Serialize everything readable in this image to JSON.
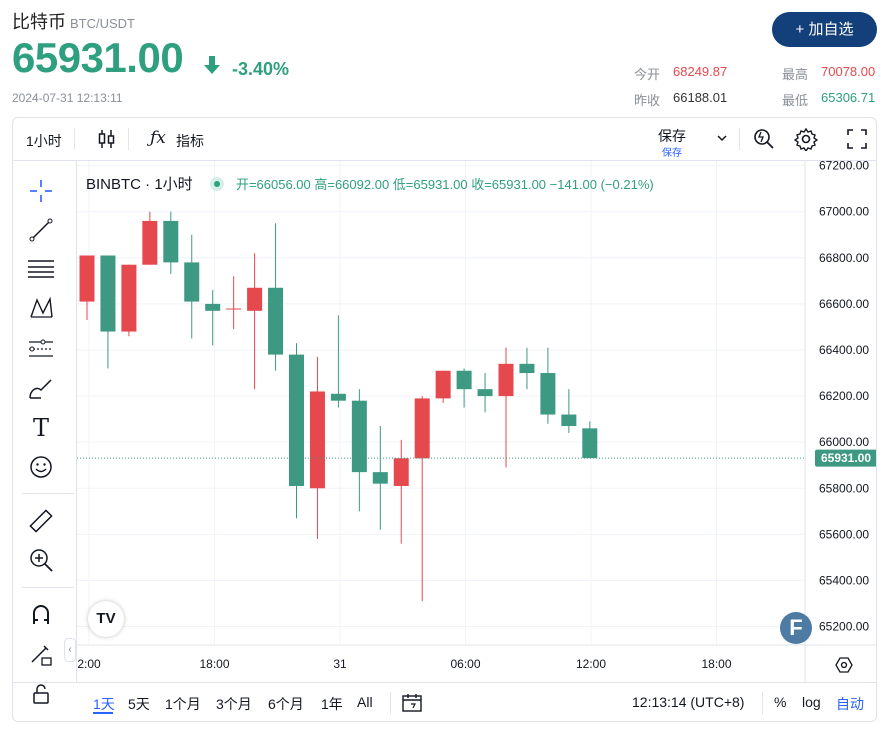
{
  "header": {
    "name": "比特币",
    "pair": "BTC/USDT",
    "price": "65931.00",
    "change_pct": "-3.40%",
    "datetime": "2024-07-31 12:13:11",
    "add_button": "+ 加自选"
  },
  "stats": {
    "open_label": "今开",
    "open_value": "68249.87",
    "high_label": "最高",
    "high_value": "70078.00",
    "prev_close_label": "昨收",
    "prev_close_value": "66188.01",
    "low_label": "最低",
    "low_value": "65306.71"
  },
  "toolbar": {
    "interval": "1小时",
    "indicators": "指标",
    "save": "保存",
    "save_sub": "保存"
  },
  "legend": {
    "symbol": "BINBTC · 1小时",
    "ohlc": "开=66056.00  高=66092.00  低=65931.00  收=65931.00  −141.00 (−0.21%)"
  },
  "bottom": {
    "ranges": [
      "1天",
      "5天",
      "1个月",
      "3个月",
      "6个月",
      "1年",
      "All"
    ],
    "clock": "12:13:14 (UTC+8)",
    "percent": "%",
    "log": "log",
    "auto": "自动"
  },
  "colors": {
    "up": "#e5484d",
    "down": "#3d9982",
    "accent": "#2962ff"
  },
  "chart_data": {
    "type": "candlestick",
    "x_tick_labels": [
      "2:00",
      "18:00",
      "31",
      "06:00",
      "12:00",
      "18:00"
    ],
    "y_tick_labels": [
      "67200.00",
      "67000.00",
      "66800.00",
      "66600.00",
      "66400.00",
      "66200.00",
      "66000.00",
      "65800.00",
      "65600.00",
      "65400.00",
      "65200.00"
    ],
    "ylim": [
      65120,
      67220
    ],
    "last_price_label": "65931.00",
    "candles": [
      {
        "o": 66610,
        "h": 66810,
        "l": 66530,
        "c": 66810
      },
      {
        "o": 66810,
        "h": 66810,
        "l": 66320,
        "c": 66480
      },
      {
        "o": 66480,
        "h": 66770,
        "l": 66460,
        "c": 66770
      },
      {
        "o": 66770,
        "h": 67000,
        "l": 66770,
        "c": 66960
      },
      {
        "o": 66960,
        "h": 67000,
        "l": 66730,
        "c": 66780
      },
      {
        "o": 66780,
        "h": 66900,
        "l": 66450,
        "c": 66610
      },
      {
        "o": 66600,
        "h": 66660,
        "l": 66420,
        "c": 66570
      },
      {
        "o": 66580,
        "h": 66720,
        "l": 66490,
        "c": 66580
      },
      {
        "o": 66570,
        "h": 66820,
        "l": 66230,
        "c": 66670
      },
      {
        "o": 66670,
        "h": 66950,
        "l": 66310,
        "c": 66380
      },
      {
        "o": 66380,
        "h": 66430,
        "l": 65670,
        "c": 65810
      },
      {
        "o": 65800,
        "h": 66370,
        "l": 65580,
        "c": 66220
      },
      {
        "o": 66210,
        "h": 66550,
        "l": 66150,
        "c": 66180
      },
      {
        "o": 66180,
        "h": 66230,
        "l": 65700,
        "c": 65870
      },
      {
        "o": 65870,
        "h": 66070,
        "l": 65620,
        "c": 65820
      },
      {
        "o": 65810,
        "h": 66010,
        "l": 65560,
        "c": 65930
      },
      {
        "o": 65930,
        "h": 66200,
        "l": 65310,
        "c": 66190
      },
      {
        "o": 66190,
        "h": 66310,
        "l": 66170,
        "c": 66310
      },
      {
        "o": 66310,
        "h": 66320,
        "l": 66150,
        "c": 66230
      },
      {
        "o": 66230,
        "h": 66300,
        "l": 66130,
        "c": 66200
      },
      {
        "o": 66200,
        "h": 66410,
        "l": 65890,
        "c": 66340
      },
      {
        "o": 66340,
        "h": 66410,
        "l": 66230,
        "c": 66300
      },
      {
        "o": 66300,
        "h": 66410,
        "l": 66080,
        "c": 66120
      },
      {
        "o": 66120,
        "h": 66230,
        "l": 66040,
        "c": 66070
      },
      {
        "o": 66060,
        "h": 66090,
        "l": 65930,
        "c": 65931
      }
    ]
  }
}
